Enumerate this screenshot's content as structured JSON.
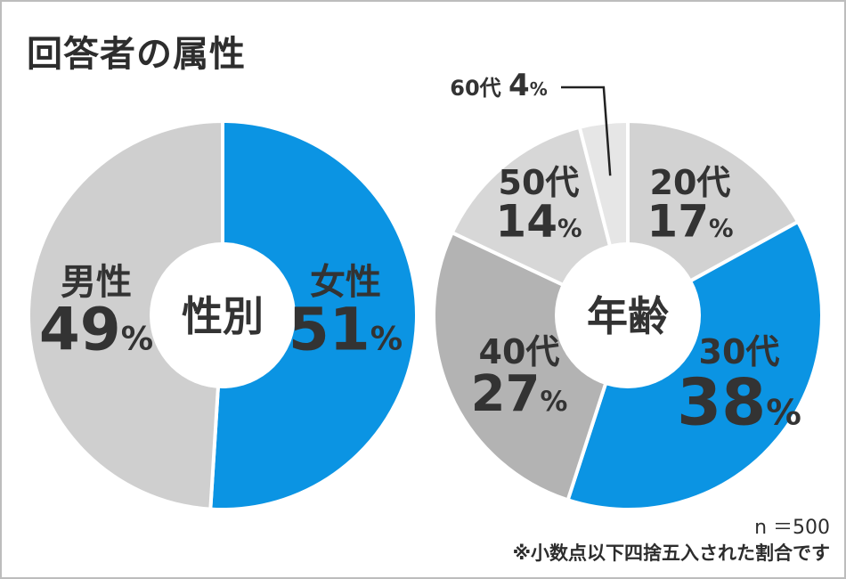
{
  "title": "回答者の属性",
  "chart_data": [
    {
      "type": "pie",
      "center_label": "性別",
      "slices": [
        {
          "label": "女性",
          "value": 51,
          "value_text": "51",
          "unit": "%",
          "color": "#0b94e3"
        },
        {
          "label": "男性",
          "value": 49,
          "value_text": "49",
          "unit": "%",
          "color": "#cfcfcf"
        }
      ]
    },
    {
      "type": "pie",
      "center_label": "年齢",
      "slices": [
        {
          "label": "20代",
          "value": 17,
          "value_text": "17",
          "unit": "%",
          "color": "#d2d2d2"
        },
        {
          "label": "30代",
          "value": 38,
          "value_text": "38",
          "unit": "%",
          "color": "#0b94e3"
        },
        {
          "label": "40代",
          "value": 27,
          "value_text": "27",
          "unit": "%",
          "color": "#b3b3b3"
        },
        {
          "label": "50代",
          "value": 14,
          "value_text": "14",
          "unit": "%",
          "color": "#d7d7d7"
        },
        {
          "label": "60代",
          "value": 4,
          "value_text": "4",
          "unit": "%",
          "color": "#e6e6e6"
        }
      ]
    }
  ],
  "notes": {
    "sample": "n ＝500",
    "rounding": "※小数点以下四捨五入された割合です"
  }
}
